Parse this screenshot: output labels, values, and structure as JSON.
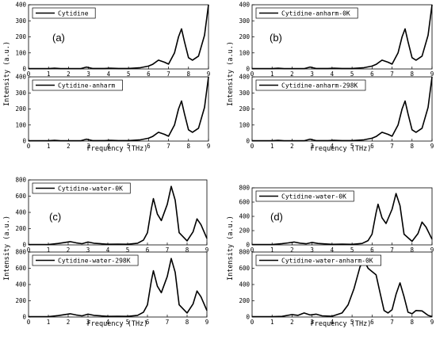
{
  "chart_data": [
    {
      "type": "line",
      "figure": "a",
      "label": "(a)",
      "legend": "Cytidine",
      "xlabel": "",
      "ylabel": "",
      "xlim": [
        0,
        9
      ],
      "ylim": [
        0,
        400
      ],
      "xticks": [
        "0",
        "1",
        "2",
        "3",
        "4",
        "5",
        "6",
        "7",
        "8",
        "9"
      ],
      "yticks": [
        "0",
        "100",
        "200",
        "300",
        "400"
      ],
      "x": [
        0,
        1,
        1.3,
        1.6,
        2.6,
        2.9,
        3.2,
        3.8,
        4.1,
        4.5,
        5.0,
        5.6,
        6.0,
        6.2,
        6.5,
        6.8,
        7.0,
        7.3,
        7.5,
        7.65,
        7.8,
        8.0,
        8.2,
        8.5,
        8.8,
        9.0
      ],
      "y": [
        2,
        2,
        5,
        2,
        2,
        12,
        3,
        3,
        5,
        3,
        3,
        8,
        18,
        28,
        55,
        42,
        30,
        100,
        200,
        250,
        170,
        70,
        55,
        80,
        210,
        400
      ]
    },
    {
      "type": "line",
      "figure": "a",
      "label": "",
      "legend": "Cytidine-anharm",
      "xlabel": "Frequency (THz)",
      "ylabel": "Intensity (a.u.)",
      "xlim": [
        0,
        9
      ],
      "ylim": [
        0,
        400
      ],
      "xticks": [
        "0",
        "1",
        "2",
        "3",
        "4",
        "5",
        "6",
        "7",
        "8",
        "9"
      ],
      "yticks": [
        "0",
        "100",
        "200",
        "300",
        "400"
      ],
      "x": [
        0,
        1,
        1.3,
        1.6,
        2.6,
        2.9,
        3.2,
        3.8,
        4.1,
        4.5,
        5.0,
        5.6,
        6.0,
        6.2,
        6.5,
        6.8,
        7.0,
        7.3,
        7.5,
        7.65,
        7.8,
        8.0,
        8.2,
        8.5,
        8.8,
        9.0
      ],
      "y": [
        2,
        2,
        5,
        2,
        2,
        12,
        3,
        3,
        5,
        3,
        3,
        8,
        18,
        28,
        55,
        42,
        30,
        100,
        200,
        250,
        170,
        70,
        55,
        80,
        210,
        400
      ]
    },
    {
      "type": "line",
      "figure": "b",
      "label": "(b)",
      "legend": "Cytidine-anharm-0K",
      "xlabel": "",
      "ylabel": "",
      "xlim": [
        0,
        9
      ],
      "ylim": [
        0,
        400
      ],
      "xticks": [
        "0",
        "1",
        "2",
        "3",
        "4",
        "5",
        "6",
        "7",
        "8",
        "9"
      ],
      "yticks": [
        "0",
        "100",
        "200",
        "300",
        "400"
      ],
      "x": [
        0,
        1,
        1.3,
        1.6,
        2.6,
        2.9,
        3.2,
        3.8,
        4.1,
        4.5,
        5.0,
        5.6,
        6.0,
        6.2,
        6.5,
        6.8,
        7.0,
        7.3,
        7.5,
        7.65,
        7.8,
        8.0,
        8.2,
        8.5,
        8.8,
        9.0
      ],
      "y": [
        2,
        2,
        5,
        2,
        2,
        12,
        3,
        3,
        5,
        3,
        3,
        8,
        18,
        28,
        55,
        42,
        30,
        100,
        200,
        250,
        170,
        70,
        55,
        80,
        210,
        400
      ]
    },
    {
      "type": "line",
      "figure": "b",
      "label": "",
      "legend": "Cytidine-anharm-298K",
      "xlabel": "Frequency (THz)",
      "ylabel": "Intensity (a.u.)",
      "xlim": [
        0,
        9
      ],
      "ylim": [
        0,
        400
      ],
      "xticks": [
        "0",
        "1",
        "2",
        "3",
        "4",
        "5",
        "6",
        "7",
        "8",
        "9"
      ],
      "yticks": [
        "0",
        "100",
        "200",
        "300",
        "400"
      ],
      "x": [
        0,
        1,
        1.3,
        1.6,
        2.6,
        2.9,
        3.2,
        3.8,
        4.1,
        4.5,
        5.0,
        5.6,
        6.0,
        6.2,
        6.5,
        6.8,
        7.0,
        7.3,
        7.5,
        7.65,
        7.8,
        8.0,
        8.2,
        8.5,
        8.8,
        9.0
      ],
      "y": [
        2,
        2,
        5,
        2,
        2,
        12,
        3,
        3,
        5,
        3,
        3,
        8,
        18,
        28,
        55,
        42,
        30,
        100,
        200,
        250,
        170,
        70,
        55,
        80,
        210,
        400
      ]
    },
    {
      "type": "line",
      "figure": "c",
      "label": "(c)",
      "legend": "Cytidine-water-0K",
      "xlabel": "",
      "ylabel": "",
      "xlim": [
        0,
        9
      ],
      "ylim": [
        0,
        800
      ],
      "xticks": [
        "0",
        "1",
        "2",
        "3",
        "4",
        "5",
        "6",
        "7",
        "8",
        "9"
      ],
      "yticks": [
        "0",
        "200",
        "400",
        "600",
        "800"
      ],
      "x": [
        0,
        1,
        1.5,
        1.8,
        2.1,
        2.4,
        2.7,
        3.0,
        3.3,
        4.0,
        4.5,
        5.0,
        5.5,
        5.8,
        6.0,
        6.2,
        6.3,
        6.5,
        6.7,
        7.0,
        7.2,
        7.4,
        7.6,
        8.0,
        8.3,
        8.5,
        8.7,
        9.0
      ],
      "y": [
        5,
        5,
        18,
        28,
        40,
        25,
        15,
        35,
        20,
        8,
        10,
        8,
        20,
        60,
        150,
        450,
        570,
        380,
        300,
        500,
        720,
        550,
        150,
        50,
        160,
        320,
        250,
        80
      ]
    },
    {
      "type": "line",
      "figure": "c",
      "label": "",
      "legend": "Cytidine-water-298K",
      "xlabel": "Frequency (THz)",
      "ylabel": "Intensity (a.u.)",
      "xlim": [
        0,
        9
      ],
      "ylim": [
        0,
        800
      ],
      "xticks": [
        "0",
        "1",
        "2",
        "3",
        "4",
        "5",
        "6",
        "7",
        "8",
        "9"
      ],
      "yticks": [
        "0",
        "200",
        "400",
        "600",
        "800"
      ],
      "x": [
        0,
        1,
        1.5,
        1.8,
        2.1,
        2.4,
        2.7,
        3.0,
        3.3,
        4.0,
        4.5,
        5.0,
        5.5,
        5.8,
        6.0,
        6.2,
        6.3,
        6.5,
        6.7,
        7.0,
        7.2,
        7.4,
        7.6,
        8.0,
        8.3,
        8.5,
        8.7,
        9.0
      ],
      "y": [
        5,
        5,
        18,
        28,
        40,
        25,
        15,
        35,
        20,
        8,
        10,
        8,
        20,
        60,
        150,
        450,
        570,
        380,
        300,
        500,
        720,
        550,
        150,
        50,
        160,
        320,
        250,
        80
      ]
    },
    {
      "type": "line",
      "figure": "d",
      "label": "(d)",
      "legend": "Cytidine-water-0K",
      "xlabel": "",
      "ylabel": "",
      "xlim": [
        0,
        9
      ],
      "ylim": [
        0,
        800
      ],
      "xticks": [
        "0",
        "1",
        "2",
        "3",
        "4",
        "5",
        "6",
        "7",
        "8",
        "9"
      ],
      "yticks": [
        "0",
        "200",
        "400",
        "600",
        "800"
      ],
      "x": [
        0,
        1,
        1.5,
        1.8,
        2.1,
        2.4,
        2.7,
        3.0,
        3.3,
        4.0,
        4.5,
        5.0,
        5.5,
        5.8,
        6.0,
        6.2,
        6.3,
        6.5,
        6.7,
        7.0,
        7.2,
        7.4,
        7.6,
        8.0,
        8.3,
        8.5,
        8.7,
        9.0
      ],
      "y": [
        5,
        5,
        18,
        28,
        40,
        25,
        15,
        35,
        20,
        8,
        10,
        8,
        20,
        60,
        150,
        450,
        570,
        380,
        300,
        500,
        720,
        550,
        150,
        50,
        160,
        320,
        250,
        80
      ]
    },
    {
      "type": "line",
      "figure": "d",
      "label": "",
      "legend": "Cytidine-water-anharm-0K",
      "xlabel": "Frequency (THz)",
      "ylabel": "Intensity (a.u.)",
      "xlim": [
        0,
        9
      ],
      "ylim": [
        0,
        800
      ],
      "xticks": [
        "0",
        "1",
        "2",
        "3",
        "4",
        "5",
        "6",
        "7",
        "8",
        "9"
      ],
      "yticks": [
        "0",
        "200",
        "400",
        "600",
        "800"
      ],
      "x": [
        0,
        1,
        1.5,
        2.0,
        2.3,
        2.6,
        2.9,
        3.2,
        3.5,
        4.0,
        4.5,
        4.8,
        5.1,
        5.4,
        5.6,
        5.8,
        6.0,
        6.2,
        6.4,
        6.6,
        6.8,
        7.0,
        7.2,
        7.4,
        7.6,
        7.8,
        8.0,
        8.2,
        8.5,
        8.8,
        9.0
      ],
      "y": [
        5,
        5,
        8,
        30,
        20,
        50,
        25,
        35,
        15,
        10,
        50,
        150,
        350,
        620,
        700,
        600,
        560,
        520,
        300,
        80,
        50,
        90,
        280,
        420,
        250,
        60,
        40,
        80,
        75,
        20,
        5
      ]
    }
  ]
}
